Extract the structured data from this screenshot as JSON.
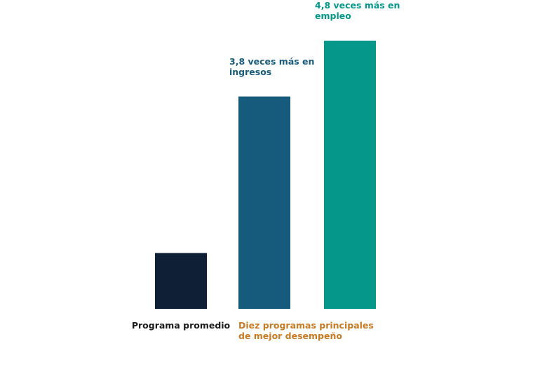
{
  "chart_data": {
    "type": "bar",
    "categories": [
      "Programa promedio",
      "Diez programas principales de mejor desempeño",
      null
    ],
    "values": [
      1,
      3.8,
      4.8
    ],
    "value_labels": [
      null,
      "3,8 veces más en ingresos",
      "4,8 veces más en empleo"
    ],
    "colors": [
      "#0f1f35",
      "#175b7c",
      "#04978a"
    ],
    "category_colors": [
      "#1a1a1a",
      "#c87a22",
      null
    ],
    "ylim": [
      0,
      5
    ],
    "grid": false
  }
}
